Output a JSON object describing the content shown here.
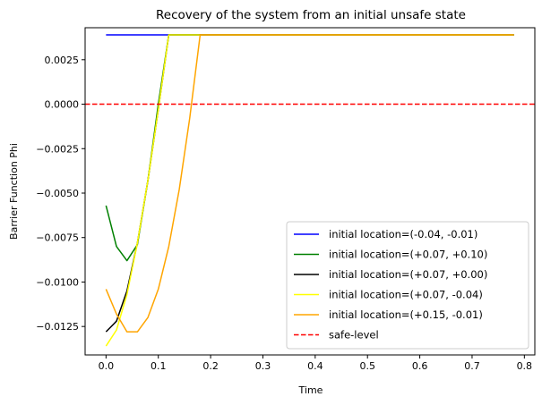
{
  "chart_data": {
    "type": "line",
    "title": "Recovery of the system from an initial unsafe state",
    "xlabel": "Time",
    "ylabel": "Barrier Function Phi",
    "xlim": [
      -0.04,
      0.82
    ],
    "ylim": [
      -0.0141,
      0.0043
    ],
    "x_ticks": [
      0.0,
      0.1,
      0.2,
      0.3,
      0.4,
      0.5,
      0.6,
      0.7,
      0.8
    ],
    "x_tick_labels": [
      "0.0",
      "0.1",
      "0.2",
      "0.3",
      "0.4",
      "0.5",
      "0.6",
      "0.7",
      "0.8"
    ],
    "y_ticks": [
      0.0025,
      0.0,
      -0.0025,
      -0.005,
      -0.0075,
      -0.01,
      -0.0125
    ],
    "y_tick_labels": [
      "0.0025",
      "0.0000",
      "−0.0025",
      "−0.0050",
      "−0.0075",
      "−0.0100",
      "−0.0125"
    ],
    "grid": false,
    "legend_position": "lower-right",
    "series": [
      {
        "name": "initial location=(-0.04, -0.01)",
        "color": "#0000ff",
        "x": [
          0.0,
          0.78
        ],
        "y": [
          0.0039,
          0.0039
        ]
      },
      {
        "name": "initial location=(+0.07, +0.10)",
        "color": "#008000",
        "x": [
          0.0,
          0.02,
          0.04,
          0.06,
          0.08,
          0.1,
          0.12,
          0.78
        ],
        "y": [
          -0.0057,
          -0.008,
          -0.0088,
          -0.0079,
          -0.0043,
          0.0,
          0.0039,
          0.0039
        ]
      },
      {
        "name": "initial location=(+0.07, +0.00)",
        "color": "#000000",
        "x": [
          0.0,
          0.02,
          0.04,
          0.06,
          0.08,
          0.1,
          0.12,
          0.78
        ],
        "y": [
          -0.0128,
          -0.0122,
          -0.0105,
          -0.0078,
          -0.0043,
          -0.0003,
          0.0039,
          0.0039
        ]
      },
      {
        "name": "initial location=(+0.07, -0.04)",
        "color": "#ffff00",
        "x": [
          0.0,
          0.02,
          0.04,
          0.06,
          0.08,
          0.1,
          0.12,
          0.78
        ],
        "y": [
          -0.0136,
          -0.0127,
          -0.0107,
          -0.0078,
          -0.0043,
          -0.0003,
          0.0039,
          0.0039
        ]
      },
      {
        "name": "initial location=(+0.15, -0.01)",
        "color": "#ffa500",
        "x": [
          0.0,
          0.02,
          0.04,
          0.06,
          0.08,
          0.1,
          0.12,
          0.14,
          0.16,
          0.18,
          0.78
        ],
        "y": [
          -0.0104,
          -0.0118,
          -0.0128,
          -0.0128,
          -0.012,
          -0.0104,
          -0.008,
          -0.0048,
          -0.0008,
          0.0039,
          0.0039
        ]
      }
    ],
    "reference_lines": [
      {
        "name": "safe-level",
        "y": 0.0,
        "color": "#ff0000",
        "style": "dashed"
      }
    ]
  }
}
